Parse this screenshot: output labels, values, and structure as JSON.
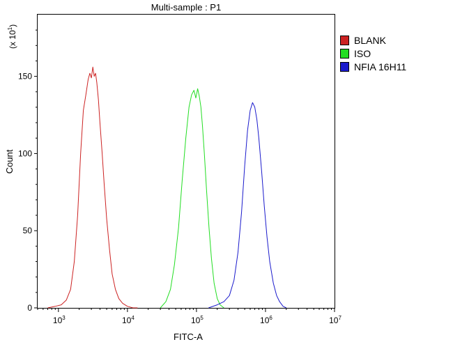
{
  "chart_data": {
    "type": "line",
    "title": "Multi-sample : P1",
    "xlabel": "FITC-A",
    "ylabel": "Count",
    "y_multiplier_label": "(x 10",
    "y_multiplier_exp": "1",
    "y_multiplier_close": ")",
    "x_scale": "log",
    "xlim": [
      500,
      10000000
    ],
    "ylim": [
      0,
      190
    ],
    "x_ticks": [
      {
        "base": "10",
        "exp": "3",
        "value": 1000
      },
      {
        "base": "10",
        "exp": "4",
        "value": 10000
      },
      {
        "base": "10",
        "exp": "5",
        "value": 100000
      },
      {
        "base": "10",
        "exp": "6",
        "value": 1000000
      },
      {
        "base": "10",
        "exp": "7",
        "value": 10000000
      }
    ],
    "y_ticks": [
      {
        "label": "0",
        "value": 0
      },
      {
        "label": "50",
        "value": 50
      },
      {
        "label": "100",
        "value": 100
      },
      {
        "label": "150",
        "value": 150
      }
    ],
    "grid": false,
    "legend_position": "top-right",
    "series": [
      {
        "name": "BLANK",
        "color": "#cc2222",
        "x": [
          700,
          900,
          1100,
          1300,
          1500,
          1700,
          1900,
          2100,
          2300,
          2500,
          2700,
          2850,
          3000,
          3150,
          3300,
          3450,
          3600,
          3800,
          4000,
          4300,
          4600,
          5000,
          5500,
          6000,
          6700,
          7500,
          8500,
          10000,
          12000,
          14000
        ],
        "y": [
          0,
          1,
          2,
          5,
          12,
          30,
          60,
          100,
          128,
          138,
          148,
          152,
          149,
          156,
          150,
          152,
          146,
          135,
          120,
          100,
          80,
          58,
          38,
          22,
          12,
          6,
          3,
          1,
          0,
          0
        ]
      },
      {
        "name": "ISO",
        "color": "#22dd22",
        "x": [
          30000,
          36000,
          42000,
          48000,
          55000,
          62000,
          70000,
          78000,
          85000,
          92000,
          98000,
          104000,
          110000,
          116000,
          122000,
          130000,
          140000,
          152000,
          165000,
          180000,
          200000,
          220000,
          250000
        ],
        "y": [
          0,
          4,
          12,
          28,
          52,
          82,
          110,
          130,
          138,
          141,
          136,
          142,
          137,
          130,
          118,
          100,
          76,
          52,
          32,
          16,
          6,
          2,
          0
        ]
      },
      {
        "name": "NFIA 16H11",
        "color": "#1a1acc",
        "x": [
          150000,
          200000,
          250000,
          300000,
          350000,
          400000,
          450000,
          500000,
          550000,
          600000,
          650000,
          700000,
          750000,
          800000,
          880000,
          960000,
          1050000,
          1150000,
          1300000,
          1450000,
          1600000,
          1800000,
          2000000
        ],
        "y": [
          0,
          2,
          4,
          8,
          18,
          36,
          62,
          92,
          115,
          128,
          133,
          130,
          122,
          110,
          88,
          66,
          46,
          30,
          16,
          8,
          4,
          1,
          0
        ]
      }
    ]
  }
}
